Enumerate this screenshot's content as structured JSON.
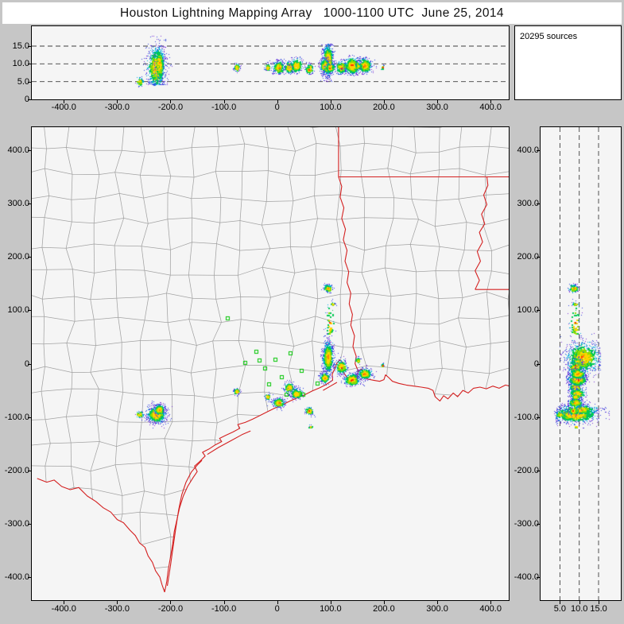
{
  "title": "Houston Lightning Mapping Array   1000-1100 UTC  June 25, 2014",
  "sources_label": "20295 sources",
  "colors": {
    "window_bg": "#c6c6c6",
    "panel_bg": "#f5f5f5",
    "border_red": "#d42020",
    "county_gray": "#a3a3a3",
    "station_green": "#00c400",
    "dashed_line": "#404040",
    "density_scale_low_to_high": [
      "#3344dd",
      "#7a30d8",
      "#00aadd",
      "#00c853",
      "#8fdc00",
      "#ffd400",
      "#ff8c00",
      "#ff2f00"
    ]
  },
  "chart_data": {
    "type": "scatter",
    "description": "Lightning mapping array source locations: altitude vs east-west (top), plan view map (center), altitude vs north-south (right)",
    "total_sources": 20295,
    "panels": [
      {
        "id": "alt-ew",
        "xlim": [
          -460,
          434
        ],
        "ylim": [
          0,
          20.6
        ],
        "dashed_lines_km": [
          5,
          10,
          15
        ],
        "grid": false
      },
      {
        "id": "plan-view",
        "xlim": [
          -460,
          434
        ],
        "ylim": [
          -443,
          443
        ],
        "grid": false
      },
      {
        "id": "alt-ns",
        "xlim": [
          0,
          20.7
        ],
        "ylim": [
          -443,
          443
        ],
        "dashed_lines_km": [
          5,
          10,
          15
        ],
        "grid": false
      }
    ],
    "x_axis": {
      "tick_values": [
        -400,
        -300,
        -200,
        -100,
        0,
        100,
        200,
        300,
        400
      ],
      "tick_labels": [
        "-400.0",
        "-300.0",
        "-200.0",
        "-100.0",
        "0",
        "100.0",
        "200.0",
        "300.0",
        "400.0"
      ]
    },
    "y_axis": {
      "tick_values": [
        400,
        300,
        200,
        100,
        0,
        -100,
        -200,
        -300,
        -400
      ],
      "tick_labels": [
        "400.0",
        "300.0",
        "200.0",
        "100.0",
        "0",
        "-100.0",
        "-200.0",
        "-300.0",
        "-400.0"
      ]
    },
    "alt_axis": {
      "tick_values": [
        15,
        10,
        5,
        0
      ],
      "tick_labels": [
        "15.0",
        "10.0",
        "5.0",
        "0"
      ],
      "bottom_tick_values": [
        5,
        10,
        15
      ],
      "bottom_tick_labels": [
        "5.0",
        "10.0",
        "15.0"
      ]
    },
    "clusters": [
      {
        "c": [
          -227,
          -95
        ],
        "s": [
          9,
          8
        ],
        "z": [
          4,
          18,
          9
        ],
        "n": 850
      },
      {
        "c": [
          -221,
          -86
        ],
        "s": [
          5,
          5
        ],
        "z": [
          5,
          17,
          10
        ],
        "n": 280
      },
      {
        "c": [
          -258,
          -95
        ],
        "s": [
          4,
          3
        ],
        "z": [
          3.5,
          6.5,
          5
        ],
        "n": 55
      },
      {
        "c": [
          -76,
          -52
        ],
        "s": [
          3,
          3
        ],
        "z": [
          7.5,
          10.5,
          9
        ],
        "n": 70
      },
      {
        "c": [
          3,
          -73
        ],
        "s": [
          6,
          5
        ],
        "z": [
          7,
          11.5,
          9
        ],
        "n": 260
      },
      {
        "c": [
          22,
          -45
        ],
        "s": [
          5,
          5
        ],
        "z": [
          7,
          11,
          9
        ],
        "n": 200
      },
      {
        "c": [
          36,
          -56
        ],
        "s": [
          6,
          5
        ],
        "z": [
          7,
          12,
          9.5
        ],
        "n": 260
      },
      {
        "c": [
          60,
          -88
        ],
        "s": [
          4,
          4
        ],
        "z": [
          7,
          10.5,
          8.5
        ],
        "n": 100
      },
      {
        "c": [
          -18,
          -62
        ],
        "s": [
          3,
          3
        ],
        "z": [
          8,
          10.5,
          9
        ],
        "n": 55
      },
      {
        "c": [
          95,
          12
        ],
        "s": [
          5,
          15
        ],
        "z": [
          5,
          15.5,
          11
        ],
        "n": 900
      },
      {
        "c": [
          89,
          -26
        ],
        "s": [
          5,
          5
        ],
        "z": [
          7,
          12,
          9.5
        ],
        "n": 260
      },
      {
        "c": [
          120,
          -6
        ],
        "s": [
          6,
          7
        ],
        "z": [
          7,
          11.5,
          9
        ],
        "n": 220
      },
      {
        "c": [
          140,
          -30
        ],
        "s": [
          8,
          6
        ],
        "z": [
          6.5,
          12.5,
          9.5
        ],
        "n": 450
      },
      {
        "c": [
          164,
          -19
        ],
        "s": [
          7,
          5
        ],
        "z": [
          7,
          12,
          9.5
        ],
        "n": 340
      },
      {
        "c": [
          95,
          141
        ],
        "s": [
          4,
          4
        ],
        "z": [
          7,
          10,
          8.5
        ],
        "n": 130
      },
      {
        "c": [
          104,
          112
        ],
        "s": [
          2,
          2
        ],
        "z": [
          8,
          10,
          9
        ],
        "n": 35
      },
      {
        "c": [
          99,
          75
        ],
        "s": [
          5,
          22
        ],
        "z": [
          7,
          11,
          9
        ],
        "n": 70
      },
      {
        "c": [
          151,
          6
        ],
        "s": [
          3,
          3
        ],
        "z": [
          8,
          11,
          9.5
        ],
        "n": 30
      },
      {
        "c": [
          198,
          -3
        ],
        "s": [
          2,
          2
        ],
        "z": [
          8,
          10,
          9
        ],
        "n": 14
      },
      {
        "c": [
          62,
          -118
        ],
        "s": [
          2,
          2
        ],
        "z": [
          8,
          10,
          9
        ],
        "n": 10
      }
    ],
    "stations": [
      [
        -92,
        85
      ],
      [
        -60,
        1
      ],
      [
        -39,
        22
      ],
      [
        -33,
        6
      ],
      [
        -22,
        -9
      ],
      [
        -4,
        8
      ],
      [
        25,
        19
      ],
      [
        8,
        -25
      ],
      [
        -15,
        -39
      ],
      [
        18,
        -58
      ],
      [
        46,
        -13
      ],
      [
        49,
        -58
      ],
      [
        75,
        -37
      ]
    ],
    "map": {
      "county_grid": {
        "spacing": 46,
        "jitter": 9,
        "seed": 11
      },
      "rio_grande": [
        [
          -450,
          -215
        ],
        [
          -432,
          -222
        ],
        [
          -418,
          -218
        ],
        [
          -404,
          -230
        ],
        [
          -388,
          -236
        ],
        [
          -372,
          -232
        ],
        [
          -356,
          -248
        ],
        [
          -340,
          -258
        ],
        [
          -326,
          -270
        ],
        [
          -312,
          -278
        ],
        [
          -300,
          -292
        ],
        [
          -288,
          -298
        ],
        [
          -276,
          -312
        ],
        [
          -266,
          -322
        ],
        [
          -258,
          -336
        ],
        [
          -248,
          -344
        ],
        [
          -242,
          -360
        ],
        [
          -234,
          -372
        ],
        [
          -228,
          -388
        ],
        [
          -220,
          -400
        ],
        [
          -216,
          -414
        ],
        [
          -211,
          -428
        ]
      ],
      "coast": [
        [
          -211,
          -428
        ],
        [
          -207,
          -408
        ],
        [
          -204,
          -385
        ],
        [
          -200,
          -362
        ],
        [
          -196,
          -338
        ],
        [
          -193,
          -315
        ],
        [
          -188,
          -292
        ],
        [
          -183,
          -270
        ],
        [
          -176,
          -248
        ],
        [
          -168,
          -230
        ],
        [
          -158,
          -214
        ],
        [
          -150,
          -202
        ],
        [
          -155,
          -192
        ],
        [
          -146,
          -184
        ],
        [
          -135,
          -173
        ],
        [
          -140,
          -166
        ],
        [
          -128,
          -160
        ],
        [
          -116,
          -152
        ],
        [
          -104,
          -146
        ],
        [
          -108,
          -140
        ],
        [
          -96,
          -134
        ],
        [
          -83,
          -128
        ],
        [
          -70,
          -121
        ],
        [
          -74,
          -114
        ],
        [
          -60,
          -110
        ],
        [
          -46,
          -104
        ],
        [
          -32,
          -97
        ],
        [
          -18,
          -90
        ],
        [
          -4,
          -83
        ],
        [
          10,
          -77
        ],
        [
          24,
          -70
        ],
        [
          38,
          -64
        ],
        [
          52,
          -58
        ],
        [
          66,
          -51
        ],
        [
          80,
          -45
        ],
        [
          90,
          -40
        ],
        [
          98,
          -35
        ],
        [
          104,
          -31
        ],
        [
          103,
          -20
        ],
        [
          108,
          -9
        ],
        [
          112,
          1
        ],
        [
          117,
          7
        ],
        [
          122,
          3
        ],
        [
          120,
          -8
        ],
        [
          125,
          -17
        ],
        [
          130,
          -25
        ],
        [
          136,
          -29
        ],
        [
          144,
          -29
        ],
        [
          150,
          -24
        ],
        [
          152,
          -15
        ],
        [
          158,
          -10
        ],
        [
          163,
          -16
        ],
        [
          162,
          -25
        ],
        [
          170,
          -29
        ],
        [
          180,
          -31
        ],
        [
          192,
          -33
        ],
        [
          200,
          -30
        ],
        [
          203,
          -21
        ],
        [
          209,
          -26
        ],
        [
          216,
          -33
        ],
        [
          228,
          -37
        ],
        [
          242,
          -40
        ],
        [
          256,
          -42
        ],
        [
          270,
          -44
        ],
        [
          283,
          -46
        ],
        [
          292,
          -50
        ],
        [
          296,
          -62
        ],
        [
          305,
          -70
        ],
        [
          312,
          -60
        ],
        [
          320,
          -66
        ],
        [
          330,
          -55
        ],
        [
          338,
          -62
        ],
        [
          348,
          -50
        ],
        [
          358,
          -55
        ],
        [
          368,
          -46
        ],
        [
          380,
          -44
        ],
        [
          392,
          -47
        ],
        [
          404,
          -42
        ],
        [
          416,
          -46
        ],
        [
          428,
          -40
        ],
        [
          440,
          -43
        ],
        [
          450,
          -40
        ]
      ],
      "barrier_islands": [
        [
          [
            -206,
            -416
          ],
          [
            -200,
            -378
          ],
          [
            -195,
            -342
          ],
          [
            -190,
            -308
          ],
          [
            -185,
            -275
          ],
          [
            -179,
            -246
          ],
          [
            -171,
            -222
          ],
          [
            -161,
            -203
          ],
          [
            -150,
            -190
          ],
          [
            -141,
            -181
          ]
        ],
        [
          [
            -131,
            -170
          ],
          [
            -110,
            -157
          ],
          [
            -88,
            -145
          ],
          [
            -66,
            -133
          ],
          [
            -50,
            -126
          ]
        ],
        [
          [
            86,
            -50
          ],
          [
            100,
            -42
          ],
          [
            112,
            -35
          ]
        ]
      ],
      "state_borders": [
        [
          [
            115,
            450
          ],
          [
            115,
            350
          ]
        ],
        [
          [
            115,
            350
          ],
          [
            450,
            350
          ]
        ],
        [
          [
            115,
            350
          ],
          [
            121,
            332
          ],
          [
            118,
            312
          ],
          [
            125,
            292
          ],
          [
            121,
            272
          ],
          [
            128,
            252
          ],
          [
            124,
            232
          ],
          [
            131,
            212
          ],
          [
            127,
            192
          ],
          [
            134,
            172
          ],
          [
            131,
            152
          ],
          [
            138,
            132
          ],
          [
            135,
            112
          ],
          [
            141,
            92
          ],
          [
            138,
            72
          ],
          [
            145,
            52
          ],
          [
            142,
            32
          ],
          [
            148,
            14
          ],
          [
            146,
            0
          ],
          [
            151,
            -12
          ],
          [
            152,
            -15
          ]
        ],
        [
          [
            371,
            139
          ],
          [
            450,
            139
          ]
        ],
        [
          [
            371,
            139
          ],
          [
            379,
            156
          ],
          [
            371,
            174
          ],
          [
            381,
            192
          ],
          [
            375,
            210
          ],
          [
            385,
            228
          ],
          [
            379,
            246
          ],
          [
            389,
            262
          ],
          [
            383,
            280
          ],
          [
            393,
            298
          ],
          [
            387,
            316
          ],
          [
            395,
            334
          ],
          [
            393,
            350
          ]
        ]
      ]
    }
  }
}
